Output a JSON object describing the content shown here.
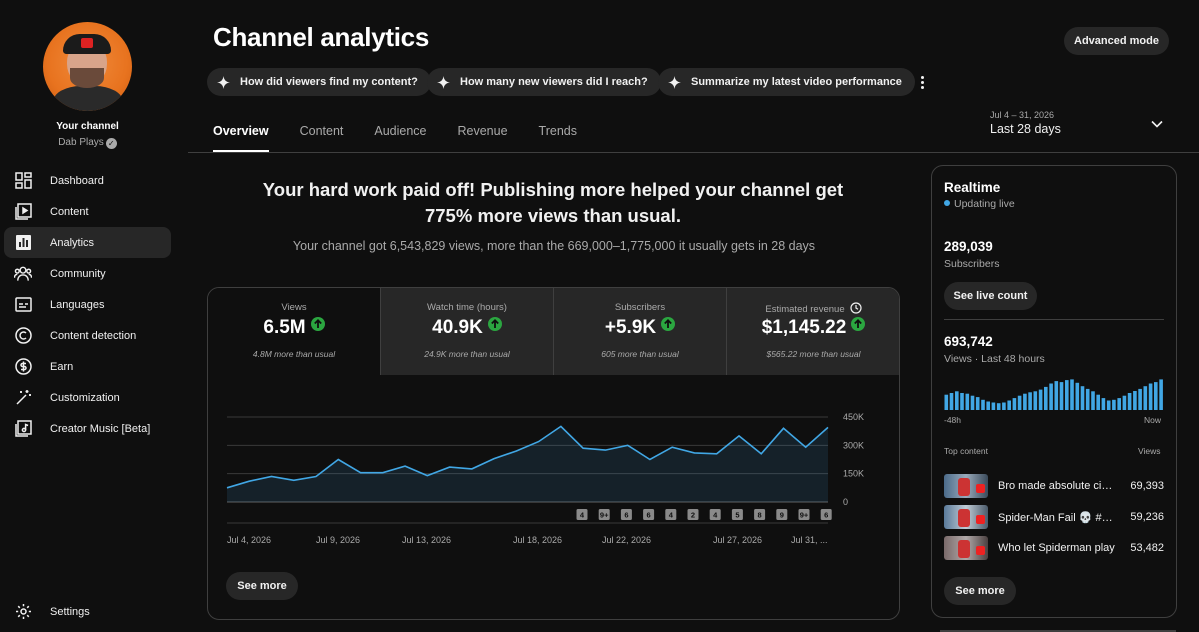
{
  "sidebar": {
    "channel_label": "Your channel",
    "channel_name": "Dab Plays",
    "items": [
      {
        "label": "Dashboard",
        "icon": "dashboard-icon"
      },
      {
        "label": "Content",
        "icon": "content-icon"
      },
      {
        "label": "Analytics",
        "icon": "analytics-icon",
        "active": true
      },
      {
        "label": "Community",
        "icon": "community-icon"
      },
      {
        "label": "Languages",
        "icon": "languages-icon"
      },
      {
        "label": "Content detection",
        "icon": "copyright-icon"
      },
      {
        "label": "Earn",
        "icon": "earn-icon"
      },
      {
        "label": "Customization",
        "icon": "customization-icon"
      },
      {
        "label": "Creator Music [Beta]",
        "icon": "music-icon"
      }
    ],
    "settings_label": "Settings"
  },
  "header": {
    "title": "Channel analytics",
    "advanced_mode": "Advanced mode",
    "chips": [
      "How did viewers find my content?",
      "How many new viewers did I reach?",
      "Summarize my latest video performance"
    ],
    "tabs": [
      "Overview",
      "Content",
      "Audience",
      "Revenue",
      "Trends"
    ],
    "active_tab": "Overview",
    "date_range": "Jul 4 – 31, 2026",
    "date_label": "Last 28 days"
  },
  "hero": {
    "headline": "Your hard work paid off! Publishing more helped your channel get 775% more views than usual.",
    "subtext": "Your channel got 6,543,829 views, more than the 669,000–1,775,000 it usually gets in 28 days"
  },
  "metrics": [
    {
      "label": "Views",
      "value": "6.5M",
      "sub": "4.8M more than usual",
      "selected": true
    },
    {
      "label": "Watch time (hours)",
      "value": "40.9K",
      "sub": "24.9K more than usual"
    },
    {
      "label": "Subscribers",
      "value": "+5.9K",
      "sub": "605 more than usual"
    },
    {
      "label": "Estimated revenue",
      "value": "$1,145.22",
      "sub": "$565.22 more than usual"
    }
  ],
  "chart_data": {
    "type": "area",
    "title": "",
    "xlabel": "",
    "ylabel": "",
    "x": [
      "Jul 4",
      "Jul 5",
      "Jul 6",
      "Jul 7",
      "Jul 8",
      "Jul 9",
      "Jul 10",
      "Jul 11",
      "Jul 12",
      "Jul 13",
      "Jul 14",
      "Jul 15",
      "Jul 16",
      "Jul 17",
      "Jul 18",
      "Jul 19",
      "Jul 20",
      "Jul 21",
      "Jul 22",
      "Jul 23",
      "Jul 24",
      "Jul 25",
      "Jul 26",
      "Jul 27",
      "Jul 28",
      "Jul 29",
      "Jul 30",
      "Jul 31"
    ],
    "values": [
      75000,
      110000,
      135000,
      115000,
      135000,
      225000,
      155000,
      155000,
      190000,
      140000,
      185000,
      175000,
      230000,
      270000,
      320000,
      400000,
      285000,
      275000,
      300000,
      225000,
      290000,
      260000,
      255000,
      350000,
      255000,
      390000,
      290000,
      395000
    ],
    "ylim": [
      0,
      450000
    ],
    "y_ticks": [
      "450K",
      "300K",
      "150K",
      "0"
    ],
    "x_tick_labels": [
      "Jul 4, 2026",
      "Jul 9, 2026",
      "Jul 13, 2026",
      "Jul 18, 2026",
      "Jul 22, 2026",
      "Jul 27, 2026",
      "Jul 31, ..."
    ],
    "upload_markers": [
      "4",
      "9+",
      "6",
      "6",
      "4",
      "2",
      "4",
      "5",
      "8",
      "9",
      "9+",
      "6"
    ],
    "grid": true,
    "line_color": "#41a7e5"
  },
  "see_more": "See more",
  "realtime": {
    "title": "Realtime",
    "status": "Updating live",
    "subscribers": "289,039",
    "subscribers_label": "Subscribers",
    "live_count_btn": "See live count",
    "views": "693,742",
    "views_label": "Views · Last 48 hours",
    "axis_left": "-48h",
    "axis_right": "Now",
    "bars": [
      0.45,
      0.5,
      0.55,
      0.5,
      0.48,
      0.42,
      0.38,
      0.3,
      0.25,
      0.22,
      0.2,
      0.22,
      0.28,
      0.35,
      0.42,
      0.48,
      0.52,
      0.55,
      0.6,
      0.68,
      0.78,
      0.85,
      0.82,
      0.88,
      0.9,
      0.8,
      0.7,
      0.62,
      0.55,
      0.45,
      0.35,
      0.28,
      0.3,
      0.35,
      0.42,
      0.5,
      0.56,
      0.62,
      0.7,
      0.78,
      0.82,
      0.9
    ],
    "top_content_label": "Top content",
    "views_col": "Views",
    "top_content": [
      {
        "title": "Bro made absolute cinema",
        "views": "69,393"
      },
      {
        "title": "Spider-Man Fail 💀 #shorts",
        "views": "59,236"
      },
      {
        "title": "Who let Spiderman play",
        "views": "53,482"
      }
    ],
    "see_more": "See more"
  }
}
